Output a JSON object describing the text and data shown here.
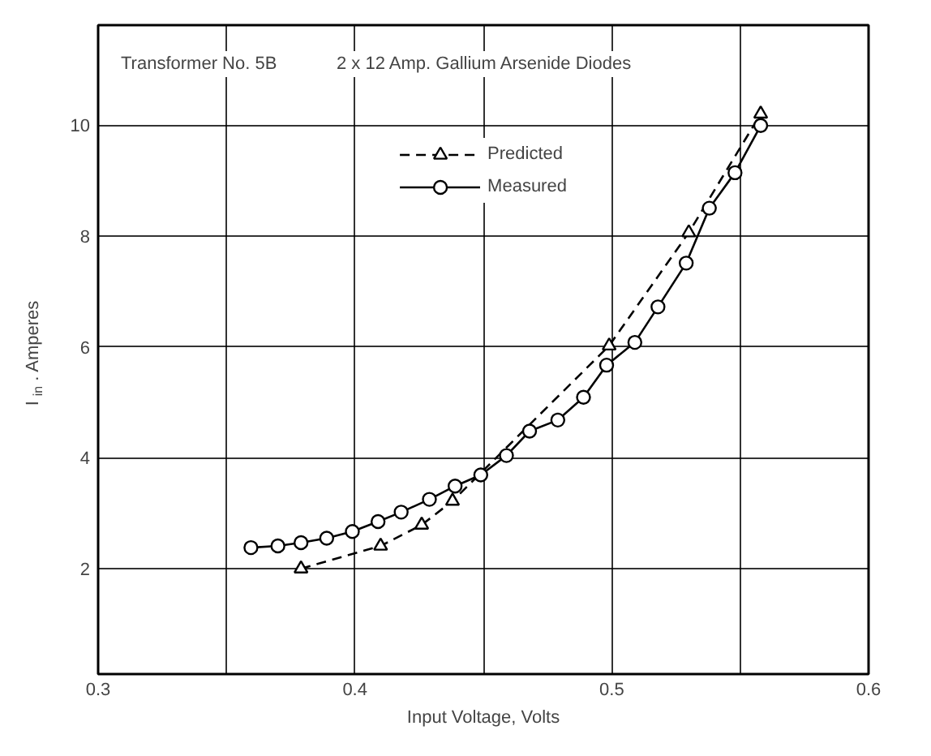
{
  "chart_data": {
    "type": "line",
    "xlabel": "Input Voltage, Volts",
    "ylabel": "I$_{in}$. Amperes",
    "annotations": [
      "Transformer No. 5B",
      "2 x 12 Amp. Gallium Arsenide Diodes"
    ],
    "series": [
      {
        "name": "Predicted",
        "color": "#000000",
        "marker": "triangle",
        "line_style": "dashed",
        "x": [
          0.379,
          0.41,
          0.426,
          0.438,
          0.499,
          0.53,
          0.558
        ],
        "values": [
          2.0,
          2.41,
          2.79,
          3.22,
          6.02,
          8.06,
          10.2
        ]
      },
      {
        "name": "Measured",
        "color": "#000000",
        "marker": "circle",
        "line_style": "solid",
        "x": [
          0.3595,
          0.37,
          0.379,
          0.389,
          0.399,
          0.409,
          0.418,
          0.429,
          0.439,
          0.449,
          0.459,
          0.468,
          0.479,
          0.489,
          0.498,
          0.509,
          0.518,
          0.529,
          0.538,
          0.548,
          0.558
        ],
        "values": [
          2.38,
          2.41,
          2.47,
          2.55,
          2.67,
          2.85,
          3.02,
          3.25,
          3.49,
          3.69,
          4.04,
          4.48,
          4.68,
          5.09,
          5.67,
          6.08,
          6.72,
          7.51,
          8.5,
          9.14,
          9.99
        ]
      }
    ],
    "xlim": [
      0.3,
      0.6
    ],
    "ylim": [
      0.1,
      11.8
    ],
    "xticks": [
      0.3,
      {
        "value": 0.35,
        "label": null
      },
      0.4,
      {
        "value": 0.45,
        "label": null
      },
      0.5,
      {
        "value": 0.55,
        "label": null
      },
      0.6
    ],
    "yticks": [
      2,
      4,
      6,
      8,
      10
    ],
    "grid": true,
    "legend": "top center"
  }
}
